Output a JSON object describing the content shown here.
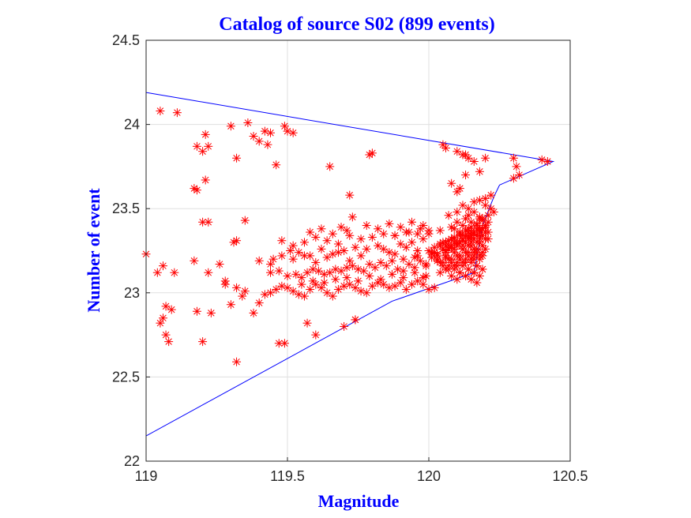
{
  "chart_data": {
    "type": "scatter",
    "title": "Catalog of source S02 (899 events)",
    "xlabel": "Magnitude",
    "ylabel": "Number of event",
    "xlim": [
      119,
      120.5
    ],
    "ylim": [
      22,
      24.5
    ],
    "xticks": [
      119,
      119.5,
      120,
      120.5
    ],
    "yticks": [
      22,
      22.5,
      23,
      23.5,
      24,
      24.5
    ],
    "xtick_labels": [
      "119",
      "119.5",
      "120",
      "120.5"
    ],
    "ytick_labels": [
      "22",
      "22.5",
      "23",
      "23.5",
      "24",
      "24.5"
    ],
    "grid": true,
    "colors": {
      "title": "#0000ff",
      "labels": "#0000ff",
      "points": "#ff0000",
      "boundary": "#0000ff"
    },
    "series": [
      {
        "marker": "asterisk",
        "x": [
          119.05,
          119.11,
          119.18,
          119.2,
          119.21,
          119.22,
          119.18,
          119.21,
          119.3,
          119.32,
          119.36,
          119.38,
          119.42,
          119.44,
          119.49,
          119.5,
          119.52,
          119.4,
          119.43,
          119.46,
          119.65,
          119.79,
          119.8,
          119.72,
          119.2,
          119.22,
          119.17,
          119.0,
          119.04,
          119.06,
          119.1,
          119.17,
          119.22,
          119.26,
          119.28,
          119.31,
          119.32,
          119.35,
          119.06,
          119.07,
          119.05,
          119.09,
          119.07,
          119.08,
          119.18,
          119.2,
          119.23,
          119.28,
          119.3,
          119.32,
          119.34,
          119.35,
          119.38,
          119.4,
          119.42,
          119.44,
          119.46,
          119.48,
          119.5,
          119.52,
          119.54,
          119.56,
          119.58,
          119.6,
          119.62,
          119.64,
          119.66,
          119.68,
          119.7,
          119.72,
          119.74,
          119.76,
          119.78,
          119.8,
          119.82,
          119.84,
          119.86,
          119.88,
          119.9,
          119.92,
          119.94,
          119.96,
          119.98,
          119.44,
          119.47,
          119.5,
          119.53,
          119.55,
          119.57,
          119.59,
          119.61,
          119.63,
          119.65,
          119.67,
          119.69,
          119.71,
          119.73,
          119.75,
          119.77,
          119.79,
          119.81,
          119.83,
          119.85,
          119.87,
          119.89,
          119.91,
          119.93,
          119.95,
          119.97,
          119.99,
          120.01,
          119.45,
          119.48,
          119.51,
          119.54,
          119.58,
          119.62,
          119.66,
          119.7,
          119.74,
          119.78,
          119.82,
          119.86,
          119.9,
          119.94,
          119.98,
          119.48,
          119.52,
          119.56,
          119.6,
          119.64,
          119.68,
          119.72,
          119.76,
          119.8,
          119.84,
          119.88,
          119.92,
          119.96,
          120.0,
          119.4,
          119.44,
          119.52,
          119.56,
          119.6,
          119.64,
          119.68,
          119.72,
          119.76,
          119.84,
          119.88,
          119.92,
          119.96,
          119.55,
          119.59,
          119.63,
          119.67,
          119.71,
          119.75,
          119.79,
          119.83,
          119.87,
          119.91,
          119.95,
          119.99,
          119.49,
          119.57,
          119.6,
          119.7,
          119.74,
          119.58,
          119.62,
          119.66,
          119.69,
          119.71,
          119.73,
          119.78,
          119.82,
          119.86,
          119.9,
          119.94,
          119.98,
          119.91,
          119.95,
          119.99,
          120.03,
          120.06,
          119.88,
          119.93,
          119.97,
          120.0,
          120.04,
          120.08,
          119.96,
          120.01,
          120.05,
          120.07,
          120.1,
          120.12,
          120.14,
          120.16,
          120.18,
          120.2,
          120.03,
          120.06,
          120.09,
          120.12,
          120.15,
          120.18,
          120.21,
          120.04,
          120.07,
          120.1,
          120.13,
          120.16,
          120.19,
          120.05,
          120.08,
          120.11,
          120.14,
          120.17,
          120.2,
          120.06,
          120.09,
          120.12,
          120.15,
          120.18,
          120.04,
          120.07,
          120.1,
          120.13,
          120.16,
          120.05,
          120.08,
          120.11,
          120.14,
          120.17,
          120.2,
          120.06,
          120.09,
          120.12,
          120.15,
          120.18,
          120.07,
          120.1,
          120.13,
          120.16,
          120.19,
          120.02,
          120.05,
          120.08,
          120.11,
          120.14,
          120.17,
          120.2,
          120.03,
          120.06,
          120.09,
          120.12,
          120.15,
          120.18,
          120.08,
          120.11,
          120.14,
          120.17,
          120.1,
          120.13,
          120.16,
          120.19,
          120.09,
          120.12,
          120.15,
          120.18,
          120.11,
          120.14,
          120.17,
          120.21,
          120.13,
          120.16,
          120.19,
          120.15,
          120.18,
          120.21,
          120.17,
          120.2,
          120.14,
          120.12,
          120.16,
          120.19,
          120.1,
          120.13,
          120.0,
          120.02,
          120.04,
          120.07,
          120.09,
          120.11,
          120.13,
          120.15,
          120.17,
          120.19,
          120.01,
          120.03,
          120.06,
          120.08,
          120.1,
          120.12,
          120.14,
          120.16,
          120.18,
          120.2,
          120.05,
          120.08,
          120.11,
          120.14,
          120.17,
          120.07,
          120.1,
          120.13,
          120.16,
          120.19,
          120.09,
          120.12,
          120.15,
          120.18,
          120.11,
          120.14,
          120.17,
          120.13,
          120.16,
          120.19,
          120.15,
          120.18,
          120.17,
          120.07,
          120.1,
          120.14,
          120.12,
          120.16,
          120.04,
          120.06,
          120.09,
          120.12,
          120.15,
          120.18,
          119.98,
          120.0,
          120.02,
          120.22,
          120.2,
          120.18,
          120.16,
          120.14,
          120.19,
          120.21,
          120.23,
          120.22,
          120.2,
          120.18,
          120.05,
          120.06,
          120.1,
          120.12,
          120.14,
          120.08,
          120.11,
          120.13,
          120.1,
          120.18,
          120.2,
          120.13,
          120.16,
          120.3,
          120.31,
          120.32,
          120.3,
          120.4,
          120.42,
          119.74,
          119.32,
          119.47
        ],
        "y": [
          24.08,
          24.07,
          23.87,
          23.84,
          23.94,
          23.87,
          23.61,
          23.67,
          23.99,
          23.8,
          24.01,
          23.93,
          23.96,
          23.95,
          23.99,
          23.96,
          23.95,
          23.9,
          23.88,
          23.76,
          23.75,
          23.82,
          23.83,
          23.58,
          23.42,
          23.42,
          23.62,
          23.23,
          23.12,
          23.16,
          23.12,
          23.19,
          23.12,
          23.17,
          23.07,
          23.3,
          23.31,
          23.43,
          22.85,
          22.92,
          22.82,
          22.9,
          22.75,
          22.71,
          22.89,
          22.71,
          22.88,
          23.05,
          22.93,
          23.03,
          22.98,
          23.01,
          22.88,
          22.94,
          22.99,
          23.0,
          23.02,
          23.04,
          23.03,
          23.01,
          22.99,
          22.98,
          23.02,
          23.05,
          23.03,
          23.0,
          22.98,
          23.02,
          23.04,
          23.05,
          23.03,
          23.01,
          23.0,
          23.04,
          23.06,
          23.05,
          23.03,
          23.04,
          23.06,
          23.02,
          23.05,
          23.07,
          23.09,
          23.12,
          23.13,
          23.1,
          23.11,
          23.09,
          23.12,
          23.14,
          23.13,
          23.11,
          23.12,
          23.14,
          23.13,
          23.15,
          23.16,
          23.14,
          23.13,
          23.17,
          23.15,
          23.18,
          23.16,
          23.19,
          23.14,
          23.2,
          23.17,
          23.21,
          23.19,
          23.16,
          23.23,
          23.2,
          23.22,
          23.25,
          23.24,
          23.22,
          23.26,
          23.23,
          23.25,
          23.27,
          23.26,
          23.28,
          23.24,
          23.29,
          23.3,
          23.32,
          23.31,
          23.28,
          23.3,
          23.33,
          23.31,
          23.29,
          23.34,
          23.32,
          23.33,
          23.35,
          23.34,
          23.36,
          23.35,
          23.37,
          23.19,
          23.17,
          23.2,
          23.22,
          23.18,
          23.21,
          23.24,
          23.19,
          23.22,
          23.26,
          23.23,
          23.27,
          23.25,
          23.05,
          23.07,
          23.06,
          23.08,
          23.09,
          23.07,
          23.1,
          23.08,
          23.11,
          23.09,
          23.12,
          23.1,
          22.7,
          22.82,
          22.75,
          22.8,
          22.84,
          23.36,
          23.38,
          23.35,
          23.39,
          23.37,
          23.45,
          23.4,
          23.38,
          23.41,
          23.39,
          23.42,
          23.4,
          23.13,
          23.15,
          23.17,
          23.19,
          23.21,
          23.34,
          23.36,
          23.38,
          23.35,
          23.37,
          23.39,
          23.22,
          23.24,
          23.26,
          23.28,
          23.3,
          23.32,
          23.34,
          23.36,
          23.38,
          23.4,
          23.2,
          23.22,
          23.24,
          23.26,
          23.28,
          23.3,
          23.32,
          23.18,
          23.2,
          23.22,
          23.24,
          23.26,
          23.28,
          23.16,
          23.18,
          23.2,
          23.22,
          23.24,
          23.26,
          23.14,
          23.16,
          23.18,
          23.2,
          23.22,
          23.12,
          23.14,
          23.16,
          23.18,
          23.2,
          23.3,
          23.32,
          23.34,
          23.36,
          23.38,
          23.4,
          23.28,
          23.3,
          23.32,
          23.34,
          23.36,
          23.26,
          23.28,
          23.3,
          23.32,
          23.34,
          23.24,
          23.26,
          23.28,
          23.3,
          23.32,
          23.34,
          23.36,
          23.22,
          23.24,
          23.26,
          23.28,
          23.3,
          23.32,
          23.1,
          23.12,
          23.14,
          23.16,
          23.08,
          23.1,
          23.12,
          23.14,
          23.38,
          23.4,
          23.42,
          23.44,
          23.36,
          23.38,
          23.4,
          23.42,
          23.34,
          23.36,
          23.38,
          23.32,
          23.34,
          23.36,
          23.3,
          23.32,
          23.28,
          23.26,
          23.24,
          23.22,
          23.42,
          23.44,
          23.25,
          23.27,
          23.29,
          23.31,
          23.33,
          23.35,
          23.37,
          23.39,
          23.41,
          23.43,
          23.21,
          23.23,
          23.25,
          23.27,
          23.29,
          23.31,
          23.33,
          23.35,
          23.37,
          23.39,
          23.18,
          23.2,
          23.22,
          23.24,
          23.26,
          23.16,
          23.18,
          23.2,
          23.22,
          23.24,
          23.14,
          23.16,
          23.18,
          23.2,
          23.12,
          23.14,
          23.16,
          23.1,
          23.12,
          23.14,
          23.08,
          23.1,
          23.06,
          23.46,
          23.48,
          23.5,
          23.52,
          23.54,
          23.28,
          23.3,
          23.32,
          23.34,
          23.36,
          23.38,
          23.05,
          23.02,
          23.03,
          23.5,
          23.52,
          23.55,
          23.48,
          23.46,
          23.44,
          23.46,
          23.48,
          23.58,
          23.56,
          23.45,
          23.88,
          23.86,
          23.84,
          23.82,
          23.8,
          23.65,
          23.62,
          23.7,
          23.6,
          23.72,
          23.8,
          23.82,
          23.78,
          23.8,
          23.75,
          23.7,
          23.68,
          23.79,
          23.78,
          22.84,
          22.59,
          22.7
        ]
      }
    ],
    "boundary": {
      "x": [
        119.0,
        120.44,
        120.25,
        120.23,
        120.19,
        120.16,
        119.87,
        119.0,
        119.0
      ],
      "y": [
        24.19,
        23.78,
        23.64,
        23.57,
        23.4,
        23.12,
        22.95,
        22.15,
        24.19
      ]
    }
  }
}
